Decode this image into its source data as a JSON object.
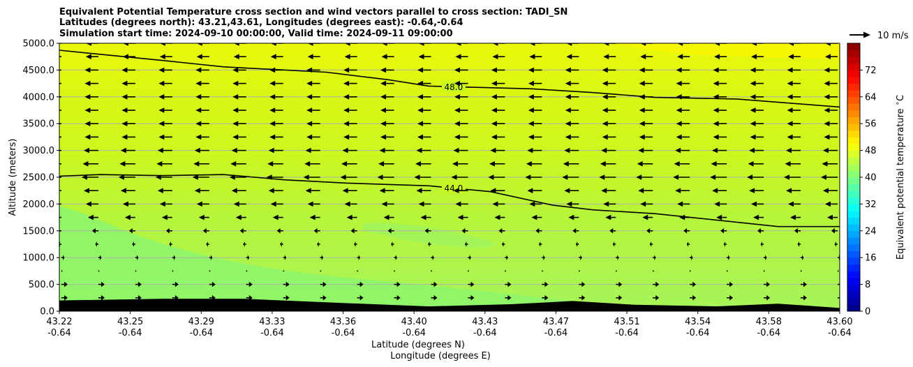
{
  "title": {
    "line1": "Equivalent Potential Temperature cross section and wind vectors parallel to cross section: TADI_SN",
    "line2": "Latitudes (degrees north): 43.21,43.61, Longitudes (degrees east): -0.64,-0.64",
    "line3": "Simulation start time: 2024-09-10 00:00:00, Valid time: 2024-09-11 09:00:00"
  },
  "xlabel_lat": "Latitude (degrees N)",
  "xlabel_lon": "Longitude (degrees E)",
  "ylabel": "Altitude (meters)",
  "colorbar_label": "Equivalent potential temperature $^\\circ$C",
  "quiver_key_label": "10 m/s",
  "chart_data": {
    "type": "heatmap",
    "xlim": [
      43.22,
      43.6
    ],
    "ylim": [
      0,
      5000
    ],
    "grid": true,
    "x_ticks": [
      {
        "lat": "43.22",
        "lon": "-0.64"
      },
      {
        "lat": "43.25",
        "lon": "-0.64"
      },
      {
        "lat": "43.29",
        "lon": "-0.64"
      },
      {
        "lat": "43.33",
        "lon": "-0.64"
      },
      {
        "lat": "43.36",
        "lon": "-0.64"
      },
      {
        "lat": "43.40",
        "lon": "-0.64"
      },
      {
        "lat": "43.43",
        "lon": "-0.64"
      },
      {
        "lat": "43.47",
        "lon": "-0.64"
      },
      {
        "lat": "43.51",
        "lon": "-0.64"
      },
      {
        "lat": "43.54",
        "lon": "-0.64"
      },
      {
        "lat": "43.58",
        "lon": "-0.64"
      },
      {
        "lat": "43.60",
        "lon": "-0.64"
      }
    ],
    "y_ticks": [
      "0.0",
      "500.0",
      "1000.0",
      "1500.0",
      "2000.0",
      "2500.0",
      "3000.0",
      "3500.0",
      "4000.0",
      "4500.0",
      "5000.0"
    ],
    "colorbar": {
      "range": [
        0,
        80
      ],
      "ticks": [
        "0",
        "8",
        "16",
        "24",
        "32",
        "40",
        "48",
        "56",
        "64",
        "72"
      ],
      "colormap": "jet"
    },
    "contours": [
      {
        "label": "48.0",
        "points": [
          [
            43.22,
            4870
          ],
          [
            43.27,
            4680
          ],
          [
            43.3,
            4560
          ],
          [
            43.35,
            4460
          ],
          [
            43.38,
            4320
          ],
          [
            43.4,
            4200
          ],
          [
            43.45,
            4150
          ],
          [
            43.48,
            4080
          ],
          [
            43.51,
            3990
          ],
          [
            43.55,
            3960
          ],
          [
            43.6,
            3810
          ]
        ]
      },
      {
        "label": "44.0",
        "points": [
          [
            43.22,
            2520
          ],
          [
            43.24,
            2550
          ],
          [
            43.27,
            2530
          ],
          [
            43.3,
            2550
          ],
          [
            43.33,
            2450
          ],
          [
            43.36,
            2390
          ],
          [
            43.4,
            2340
          ],
          [
            43.43,
            2230
          ],
          [
            43.46,
            1980
          ],
          [
            43.48,
            1890
          ],
          [
            43.51,
            1820
          ],
          [
            43.54,
            1700
          ],
          [
            43.57,
            1580
          ],
          [
            43.6,
            1580
          ]
        ]
      }
    ],
    "terrain": [
      [
        43.22,
        200
      ],
      [
        43.27,
        230
      ],
      [
        43.31,
        230
      ],
      [
        43.36,
        150
      ],
      [
        43.4,
        90
      ],
      [
        43.44,
        130
      ],
      [
        43.47,
        190
      ],
      [
        43.5,
        120
      ],
      [
        43.54,
        90
      ],
      [
        43.57,
        140
      ],
      [
        43.6,
        60
      ]
    ],
    "wind_rows": [
      {
        "z": 250,
        "u": 3
      },
      {
        "z": 500,
        "u": 3
      },
      {
        "z": 750,
        "u": 0.6
      },
      {
        "z": 1000,
        "u": 1.5
      },
      {
        "z": 1250,
        "u": -1.5
      },
      {
        "z": 1500,
        "u": -3
      },
      {
        "z": 1750,
        "u": -5
      },
      {
        "z": 2000,
        "u": -6
      },
      {
        "z": 2250,
        "u": -7
      },
      {
        "z": 2500,
        "u": -8
      },
      {
        "z": 2750,
        "u": -7.5
      },
      {
        "z": 3000,
        "u": -7
      },
      {
        "z": 3250,
        "u": -6.5
      },
      {
        "z": 3500,
        "u": -6.5
      },
      {
        "z": 3750,
        "u": -6.5
      },
      {
        "z": 4000,
        "u": -6.5
      },
      {
        "z": 4250,
        "u": -6.5
      },
      {
        "z": 4500,
        "u": -6.5
      },
      {
        "z": 4750,
        "u": -6
      },
      {
        "z": 5000,
        "u": -6
      }
    ],
    "quiver_key_value": 10
  }
}
